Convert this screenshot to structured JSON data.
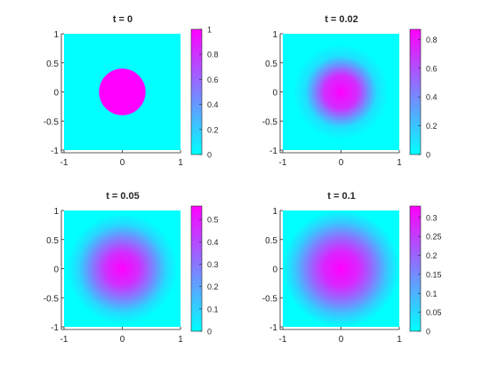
{
  "figure": {
    "colormap": "cool",
    "colormap_colors": [
      "#00ffff",
      "#ff00ff"
    ]
  },
  "chart_data": [
    {
      "type": "heatmap",
      "title": "t = 0",
      "x_range": [
        -1,
        1
      ],
      "y_range": [
        -1,
        1
      ],
      "xticks": [
        "-1",
        "0",
        "1"
      ],
      "yticks": [
        "-1",
        "-0.5",
        "0",
        "0.5",
        "1"
      ],
      "clim": [
        0,
        1
      ],
      "colorbar_ticks": [
        "0",
        "0.2",
        "0.4",
        "0.6",
        "0.8",
        "1"
      ],
      "field": {
        "shape": "disk",
        "center": [
          0,
          0
        ],
        "radius": 0.4,
        "peak": 1,
        "background": 0
      }
    },
    {
      "type": "heatmap",
      "title": "t = 0.02",
      "x_range": [
        -1,
        1
      ],
      "y_range": [
        -1,
        1
      ],
      "xticks": [
        "-1",
        "0",
        "1"
      ],
      "yticks": [
        "-1",
        "-0.5",
        "0",
        "0.5",
        "1"
      ],
      "clim": [
        0,
        0.87
      ],
      "colorbar_ticks": [
        "0",
        "0.2",
        "0.4",
        "0.6",
        "0.8"
      ],
      "field": {
        "shape": "diffused-disk",
        "center": [
          0,
          0
        ],
        "radius": 0.4,
        "time": 0.02,
        "peak": 0.87
      }
    },
    {
      "type": "heatmap",
      "title": "t = 0.05",
      "x_range": [
        -1,
        1
      ],
      "y_range": [
        -1,
        1
      ],
      "xticks": [
        "-1",
        "0",
        "1"
      ],
      "yticks": [
        "-1",
        "-0.5",
        "0",
        "0.5",
        "1"
      ],
      "clim": [
        0,
        0.56
      ],
      "colorbar_ticks": [
        "0",
        "0.1",
        "0.2",
        "0.3",
        "0.4",
        "0.5"
      ],
      "field": {
        "shape": "diffused-disk",
        "center": [
          0,
          0
        ],
        "radius": 0.4,
        "time": 0.05,
        "peak": 0.56
      }
    },
    {
      "type": "heatmap",
      "title": "t = 0.1",
      "x_range": [
        -1,
        1
      ],
      "y_range": [
        -1,
        1
      ],
      "xticks": [
        "-1",
        "0",
        "1"
      ],
      "yticks": [
        "-1",
        "-0.5",
        "0",
        "0.5",
        "1"
      ],
      "clim": [
        0,
        0.33
      ],
      "colorbar_ticks": [
        "0",
        "0.05",
        "0.1",
        "0.15",
        "0.2",
        "0.25",
        "0.3"
      ],
      "field": {
        "shape": "diffused-disk",
        "center": [
          0,
          0
        ],
        "radius": 0.4,
        "time": 0.1,
        "peak": 0.33
      }
    }
  ]
}
